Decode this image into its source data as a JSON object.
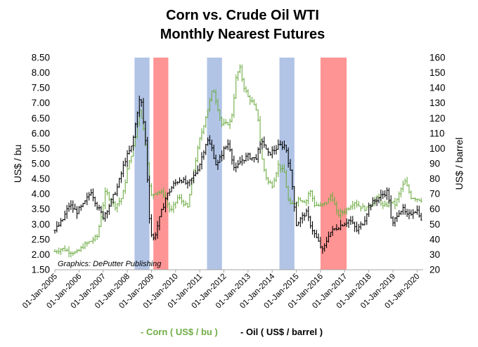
{
  "chart_data": {
    "type": "line",
    "title": "Corn vs. Crude Oil WTI",
    "subtitle": "Monthly Nearest Futures",
    "ylabel_left": "US$ / bu",
    "ylabel_right": "US$ / barrel",
    "left_axis": {
      "min": 1.5,
      "max": 8.5,
      "ticks": [
        "1.50",
        "2.00",
        "2.50",
        "3.00",
        "3.50",
        "4.00",
        "4.50",
        "5.00",
        "5.50",
        "6.00",
        "6.50",
        "7.00",
        "7.50",
        "8.00",
        "8.50"
      ]
    },
    "right_axis": {
      "min": 20,
      "max": 160,
      "ticks": [
        "20",
        "30",
        "40",
        "50",
        "60",
        "70",
        "80",
        "90",
        "100",
        "110",
        "120",
        "130",
        "140",
        "150",
        "160"
      ]
    },
    "x_range": [
      2005.0,
      2020.25
    ],
    "x_ticks": [
      "01-Jan-2005",
      "01-Jan-2006",
      "01-Jan-2007",
      "01-Jan-2008",
      "01-Jan-2009",
      "01-Jan-2010",
      "01-Jan-2011",
      "01-Jan-2012",
      "01-Jan-2013",
      "01-Jan-2014",
      "01-Jan-2015",
      "01-Jan-2016",
      "01-Jan-2017",
      "01-Jan-2018",
      "01-Jan-2019",
      "01-Jan-2020"
    ],
    "credit": "Graphics: DePutter Publishing",
    "shaded_periods": [
      {
        "start": 2008.3,
        "end": 2008.92,
        "color": "#4472c4"
      },
      {
        "start": 2009.08,
        "end": 2009.7,
        "color": "#ff0000"
      },
      {
        "start": 2011.3,
        "end": 2011.92,
        "color": "#4472c4"
      },
      {
        "start": 2014.3,
        "end": 2014.92,
        "color": "#4472c4"
      },
      {
        "start": 2016.0,
        "end": 2017.08,
        "color": "#ff0000"
      }
    ],
    "series": [
      {
        "name": "Corn ( US$ / bu )",
        "axis": "left",
        "color": "#70ad47",
        "anchors": [
          [
            2005.0,
            2.1
          ],
          [
            2005.3,
            2.2
          ],
          [
            2005.6,
            2.1
          ],
          [
            2005.9,
            2.05
          ],
          [
            2006.2,
            2.3
          ],
          [
            2006.5,
            2.45
          ],
          [
            2006.75,
            2.6
          ],
          [
            2006.9,
            3.2
          ],
          [
            2007.1,
            4.1
          ],
          [
            2007.3,
            3.8
          ],
          [
            2007.5,
            3.6
          ],
          [
            2007.8,
            3.9
          ],
          [
            2008.0,
            4.8
          ],
          [
            2008.3,
            5.7
          ],
          [
            2008.5,
            6.8
          ],
          [
            2008.6,
            6.5
          ],
          [
            2008.8,
            5.4
          ],
          [
            2008.95,
            3.9
          ],
          [
            2009.2,
            4.1
          ],
          [
            2009.5,
            4.0
          ],
          [
            2009.8,
            3.4
          ],
          [
            2010.1,
            3.9
          ],
          [
            2010.5,
            3.55
          ],
          [
            2010.75,
            4.8
          ],
          [
            2011.0,
            5.8
          ],
          [
            2011.3,
            6.7
          ],
          [
            2011.55,
            7.5
          ],
          [
            2011.7,
            7.0
          ],
          [
            2011.9,
            6.3
          ],
          [
            2012.1,
            6.3
          ],
          [
            2012.3,
            6.4
          ],
          [
            2012.5,
            7.8
          ],
          [
            2012.65,
            8.2
          ],
          [
            2012.8,
            7.6
          ],
          [
            2013.0,
            7.2
          ],
          [
            2013.2,
            7.0
          ],
          [
            2013.4,
            6.6
          ],
          [
            2013.6,
            5.0
          ],
          [
            2013.8,
            4.4
          ],
          [
            2014.0,
            4.3
          ],
          [
            2014.25,
            4.95
          ],
          [
            2014.5,
            4.7
          ],
          [
            2014.7,
            3.6
          ],
          [
            2014.9,
            3.7
          ],
          [
            2015.1,
            3.85
          ],
          [
            2015.4,
            3.75
          ],
          [
            2015.55,
            4.15
          ],
          [
            2015.75,
            3.65
          ],
          [
            2016.0,
            3.6
          ],
          [
            2016.3,
            3.75
          ],
          [
            2016.45,
            4.0
          ],
          [
            2016.7,
            3.3
          ],
          [
            2016.9,
            3.4
          ],
          [
            2017.1,
            3.5
          ],
          [
            2017.4,
            3.75
          ],
          [
            2017.6,
            3.6
          ],
          [
            2017.9,
            3.5
          ],
          [
            2018.1,
            3.7
          ],
          [
            2018.4,
            3.9
          ],
          [
            2018.6,
            3.55
          ],
          [
            2018.9,
            3.75
          ],
          [
            2019.1,
            3.65
          ],
          [
            2019.35,
            4.2
          ],
          [
            2019.5,
            4.4
          ],
          [
            2019.75,
            3.9
          ],
          [
            2020.0,
            3.85
          ],
          [
            2020.2,
            3.8
          ]
        ]
      },
      {
        "name": "Oil ( US$ / barrel )",
        "axis": "right",
        "color": "#000000",
        "anchors": [
          [
            2005.0,
            46
          ],
          [
            2005.3,
            52
          ],
          [
            2005.6,
            63
          ],
          [
            2005.9,
            58
          ],
          [
            2006.2,
            63
          ],
          [
            2006.5,
            72
          ],
          [
            2006.75,
            62
          ],
          [
            2007.0,
            55
          ],
          [
            2007.3,
            64
          ],
          [
            2007.6,
            75
          ],
          [
            2007.9,
            92
          ],
          [
            2008.2,
            102
          ],
          [
            2008.45,
            128
          ],
          [
            2008.55,
            135
          ],
          [
            2008.75,
            105
          ],
          [
            2008.95,
            45
          ],
          [
            2009.1,
            40
          ],
          [
            2009.3,
            52
          ],
          [
            2009.6,
            68
          ],
          [
            2009.9,
            76
          ],
          [
            2010.2,
            80
          ],
          [
            2010.5,
            76
          ],
          [
            2010.8,
            83
          ],
          [
            2011.0,
            90
          ],
          [
            2011.3,
            106
          ],
          [
            2011.5,
            100
          ],
          [
            2011.7,
            88
          ],
          [
            2011.95,
            98
          ],
          [
            2012.2,
            104
          ],
          [
            2012.45,
            85
          ],
          [
            2012.7,
            92
          ],
          [
            2013.0,
            95
          ],
          [
            2013.3,
            93
          ],
          [
            2013.6,
            106
          ],
          [
            2013.8,
            96
          ],
          [
            2014.0,
            98
          ],
          [
            2014.3,
            102
          ],
          [
            2014.55,
            102
          ],
          [
            2014.8,
            80
          ],
          [
            2015.0,
            50
          ],
          [
            2015.4,
            58
          ],
          [
            2015.7,
            45
          ],
          [
            2015.95,
            37
          ],
          [
            2016.1,
            32
          ],
          [
            2016.35,
            44
          ],
          [
            2016.6,
            47
          ],
          [
            2016.9,
            50
          ],
          [
            2017.2,
            53
          ],
          [
            2017.5,
            46
          ],
          [
            2017.8,
            52
          ],
          [
            2018.0,
            62
          ],
          [
            2018.3,
            66
          ],
          [
            2018.6,
            70
          ],
          [
            2018.8,
            72
          ],
          [
            2018.95,
            48
          ],
          [
            2019.2,
            58
          ],
          [
            2019.4,
            60
          ],
          [
            2019.6,
            55
          ],
          [
            2019.85,
            59
          ],
          [
            2020.05,
            59
          ],
          [
            2020.2,
            50
          ]
        ]
      }
    ]
  },
  "legend": {
    "corn_label": "- Corn ( US$ / bu )",
    "oil_label": "- Oil ( US$ / barrel )"
  }
}
